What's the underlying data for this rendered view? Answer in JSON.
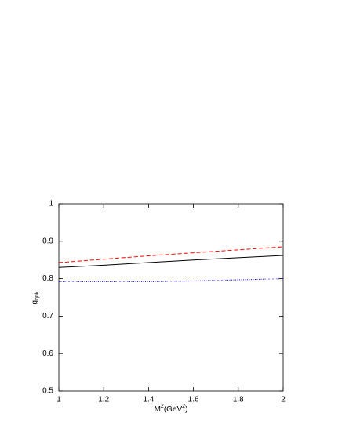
{
  "chart_data": {
    "type": "line",
    "x_label": [
      {
        "text": "M"
      },
      {
        "text": "2",
        "sup": true
      },
      {
        "text": "(GeV"
      },
      {
        "text": "2",
        "sup": true
      },
      {
        "text": ")"
      }
    ],
    "y_label": [
      {
        "text": "g"
      },
      {
        "text": "ηnk",
        "sub": true
      }
    ],
    "x": [
      1,
      1.2,
      1.4,
      1.6,
      1.8,
      2
    ],
    "series": [
      {
        "color": "#ff0000",
        "style": "dashed",
        "values": [
          0.843,
          0.852,
          0.861,
          0.869,
          0.877,
          0.885
        ]
      },
      {
        "color": "#000000",
        "style": "solid",
        "values": [
          0.83,
          0.836,
          0.843,
          0.85,
          0.856,
          0.862
        ]
      },
      {
        "color": "#0000ff",
        "style": "dotted",
        "values": [
          0.792,
          0.792,
          0.792,
          0.794,
          0.797,
          0.8
        ]
      }
    ],
    "xlim": [
      1,
      2
    ],
    "xticks": [
      1,
      1.2,
      1.4,
      1.6,
      1.8,
      2
    ],
    "ylim": [
      0.5,
      1
    ],
    "yticks": [
      0.5,
      0.6,
      0.7,
      0.8,
      0.9,
      1
    ],
    "grid": false
  }
}
